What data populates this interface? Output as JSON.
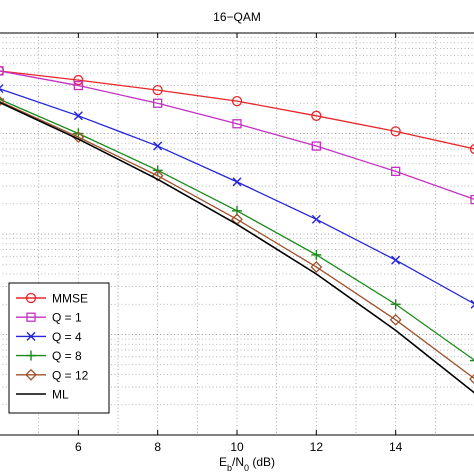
{
  "chart_data": {
    "type": "line",
    "title": "16−QAM",
    "xlabel": {
      "base1": "E",
      "sub1": "b",
      "mid": "/N",
      "sub2": "0",
      "tail": " (dB)"
    },
    "ylabel": "",
    "xlim": [
      4,
      16
    ],
    "x_ticks": [
      6,
      8,
      10,
      12,
      14
    ],
    "log_y": true,
    "ylim": [
      0.0001,
      1
    ],
    "y_ticks": [],
    "grid": true,
    "legend_position": "bottom-left",
    "x": [
      4,
      6,
      8,
      10,
      12,
      14,
      16
    ],
    "series": [
      {
        "name": "MMSE",
        "color": "#e8262a",
        "marker": "circle",
        "values": [
          0.42,
          0.34,
          0.27,
          0.21,
          0.15,
          0.105,
          0.07
        ]
      },
      {
        "name": "Q = 1",
        "color": "#c531c5",
        "marker": "square",
        "values": [
          0.42,
          0.3,
          0.2,
          0.125,
          0.075,
          0.042,
          0.022
        ]
      },
      {
        "name": "Q = 4",
        "color": "#2323e0",
        "marker": "x",
        "values": [
          0.28,
          0.15,
          0.075,
          0.033,
          0.014,
          0.0055,
          0.002
        ]
      },
      {
        "name": "Q = 8",
        "color": "#1a8a1a",
        "marker": "plus",
        "values": [
          0.22,
          0.1,
          0.043,
          0.017,
          0.0062,
          0.002,
          0.00055
        ]
      },
      {
        "name": "Q = 12",
        "color": "#a0522d",
        "marker": "diamond",
        "values": [
          0.21,
          0.092,
          0.038,
          0.014,
          0.0047,
          0.0014,
          0.00036
        ]
      },
      {
        "name": "ML",
        "color": "#000000",
        "marker": "none",
        "values": [
          0.205,
          0.088,
          0.035,
          0.0125,
          0.004,
          0.0011,
          0.00026
        ]
      }
    ]
  }
}
